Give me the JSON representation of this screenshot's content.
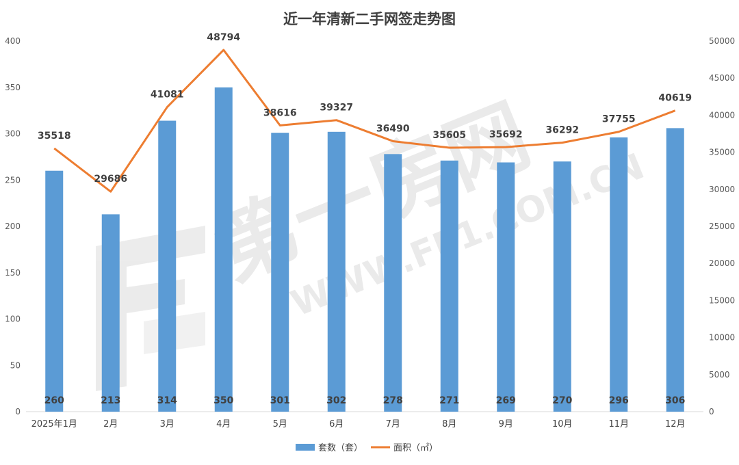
{
  "chart_data": {
    "type": "bar+line",
    "title": "近一年清新二手网签走势图",
    "categories": [
      "2025年1月",
      "2月",
      "3月",
      "4月",
      "5月",
      "6月",
      "7月",
      "8月",
      "9月",
      "10月",
      "11月",
      "12月"
    ],
    "series": [
      {
        "name": "套数（套）",
        "type": "bar",
        "axis": "left",
        "color": "#5b9bd5",
        "values": [
          260,
          213,
          314,
          350,
          301,
          302,
          278,
          271,
          269,
          270,
          296,
          306
        ]
      },
      {
        "name": "面积（㎡）",
        "type": "line",
        "axis": "right",
        "color": "#ed7d31",
        "values": [
          35518,
          29686,
          41081,
          48794,
          38616,
          39327,
          36490,
          35605,
          35692,
          36292,
          37755,
          40619
        ]
      }
    ],
    "y_left": {
      "range": [
        0,
        400
      ],
      "ticks": [
        "0",
        "50",
        "100",
        "150",
        "200",
        "250",
        "300",
        "350",
        "400"
      ]
    },
    "y_right": {
      "range": [
        0,
        50000
      ],
      "ticks": [
        "0",
        "5000",
        "10000",
        "15000",
        "20000",
        "25000",
        "30000",
        "35000",
        "40000",
        "45000",
        "50000"
      ]
    },
    "grid": false,
    "legend_position": "bottom-center",
    "watermark": {
      "text_main": "第一房网",
      "text_url": "WWW.FF1.COM.CN"
    }
  }
}
